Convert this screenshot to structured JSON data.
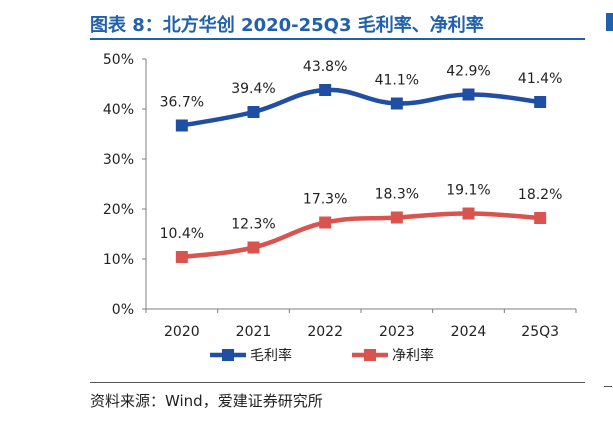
{
  "header": {
    "title": "图表 8：北方华创 2020-25Q3 毛利率、净利率"
  },
  "footer": {
    "source": "资料来源：Wind，爱建证券研究所"
  },
  "colors": {
    "accent": "#2160ab",
    "gross": "#1f4ea3",
    "net": "#d9534f"
  },
  "chart_data": {
    "type": "line",
    "categories": [
      "2020",
      "2021",
      "2022",
      "2023",
      "2024",
      "25Q3"
    ],
    "series": [
      {
        "name": "毛利率",
        "values": [
          36.7,
          39.4,
          43.8,
          41.1,
          42.9,
          41.4
        ],
        "labels": [
          "36.7%",
          "39.4%",
          "43.8%",
          "41.1%",
          "42.9%",
          "41.4%"
        ]
      },
      {
        "name": "净利率",
        "values": [
          10.4,
          12.3,
          17.3,
          18.3,
          19.1,
          18.2
        ],
        "labels": [
          "10.4%",
          "12.3%",
          "17.3%",
          "18.3%",
          "19.1%",
          "18.2%"
        ]
      }
    ],
    "yticks": [
      "0%",
      "10%",
      "20%",
      "30%",
      "40%",
      "50%"
    ],
    "ylim": [
      0,
      50
    ],
    "grid": false,
    "legend": "bottom"
  }
}
